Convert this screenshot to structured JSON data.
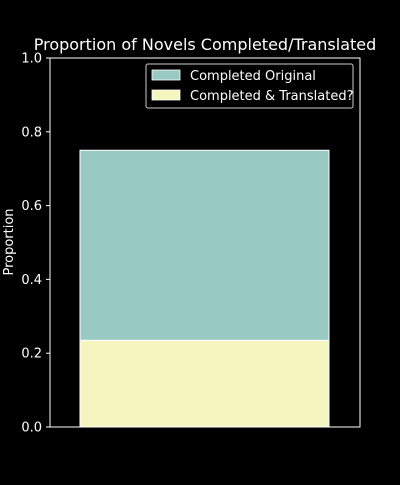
{
  "chart_data": {
    "type": "bar",
    "stacked": true,
    "title": "Proportion of Novels Completed/Translated",
    "xlabel": "",
    "ylabel": "Proportion",
    "ylim": [
      0,
      1.0
    ],
    "yticks": [
      "0.0",
      "0.2",
      "0.4",
      "0.6",
      "0.8",
      "1.0"
    ],
    "grid": false,
    "legend_position": "top-right",
    "categories": [
      ""
    ],
    "series": [
      {
        "name": "Completed & Translated?",
        "values": [
          0.235
        ],
        "color": "#f5f5bf"
      },
      {
        "name": "Completed Original",
        "values": [
          0.515
        ],
        "color": "#98c9c3"
      }
    ],
    "background": "#000000",
    "axis_color": "#ffffff"
  },
  "legend": {
    "items": [
      {
        "label": "Completed Original",
        "color": "#98c9c3"
      },
      {
        "label": "Completed & Translated?",
        "color": "#f5f5bf"
      }
    ]
  }
}
